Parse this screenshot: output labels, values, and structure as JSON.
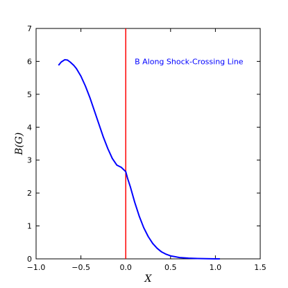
{
  "chart_data": {
    "type": "line",
    "title": "",
    "xlabel": "X",
    "ylabel": "B(G)",
    "xlim": [
      -1.0,
      1.5
    ],
    "ylim": [
      0,
      7
    ],
    "xticks": [
      -1.0,
      -0.5,
      0.0,
      0.5,
      1.0,
      1.5
    ],
    "xtick_labels": [
      "−1.0",
      "−0.5",
      "0.0",
      "0.5",
      "1.0",
      "1.5"
    ],
    "yticks": [
      0,
      1,
      2,
      3,
      4,
      5,
      6,
      7
    ],
    "ytick_labels": [
      "0",
      "1",
      "2",
      "3",
      "4",
      "5",
      "6",
      "7"
    ],
    "grid": false,
    "annotation": {
      "text": "B Along Shock-Crossing Line",
      "color": "#0000ff",
      "x": 0.1,
      "y": 6.0
    },
    "vline": {
      "x": 0.0,
      "color": "#ff0000"
    },
    "series": [
      {
        "color": "#0000ff",
        "x": [
          -0.75,
          -0.72,
          -0.68,
          -0.65,
          -0.62,
          -0.58,
          -0.55,
          -0.5,
          -0.45,
          -0.4,
          -0.35,
          -0.3,
          -0.25,
          -0.2,
          -0.15,
          -0.1,
          -0.05,
          0.0,
          0.02,
          0.05,
          0.1,
          0.15,
          0.2,
          0.25,
          0.3,
          0.35,
          0.4,
          0.45,
          0.5,
          0.6,
          0.7,
          0.8,
          0.9,
          1.0,
          1.05
        ],
        "y": [
          5.88,
          5.98,
          6.05,
          6.04,
          5.98,
          5.88,
          5.78,
          5.55,
          5.25,
          4.9,
          4.5,
          4.1,
          3.7,
          3.35,
          3.05,
          2.85,
          2.78,
          2.65,
          2.45,
          2.2,
          1.72,
          1.3,
          0.95,
          0.68,
          0.47,
          0.32,
          0.21,
          0.14,
          0.09,
          0.04,
          0.02,
          0.01,
          0.005,
          0.0,
          0.0
        ]
      }
    ]
  }
}
